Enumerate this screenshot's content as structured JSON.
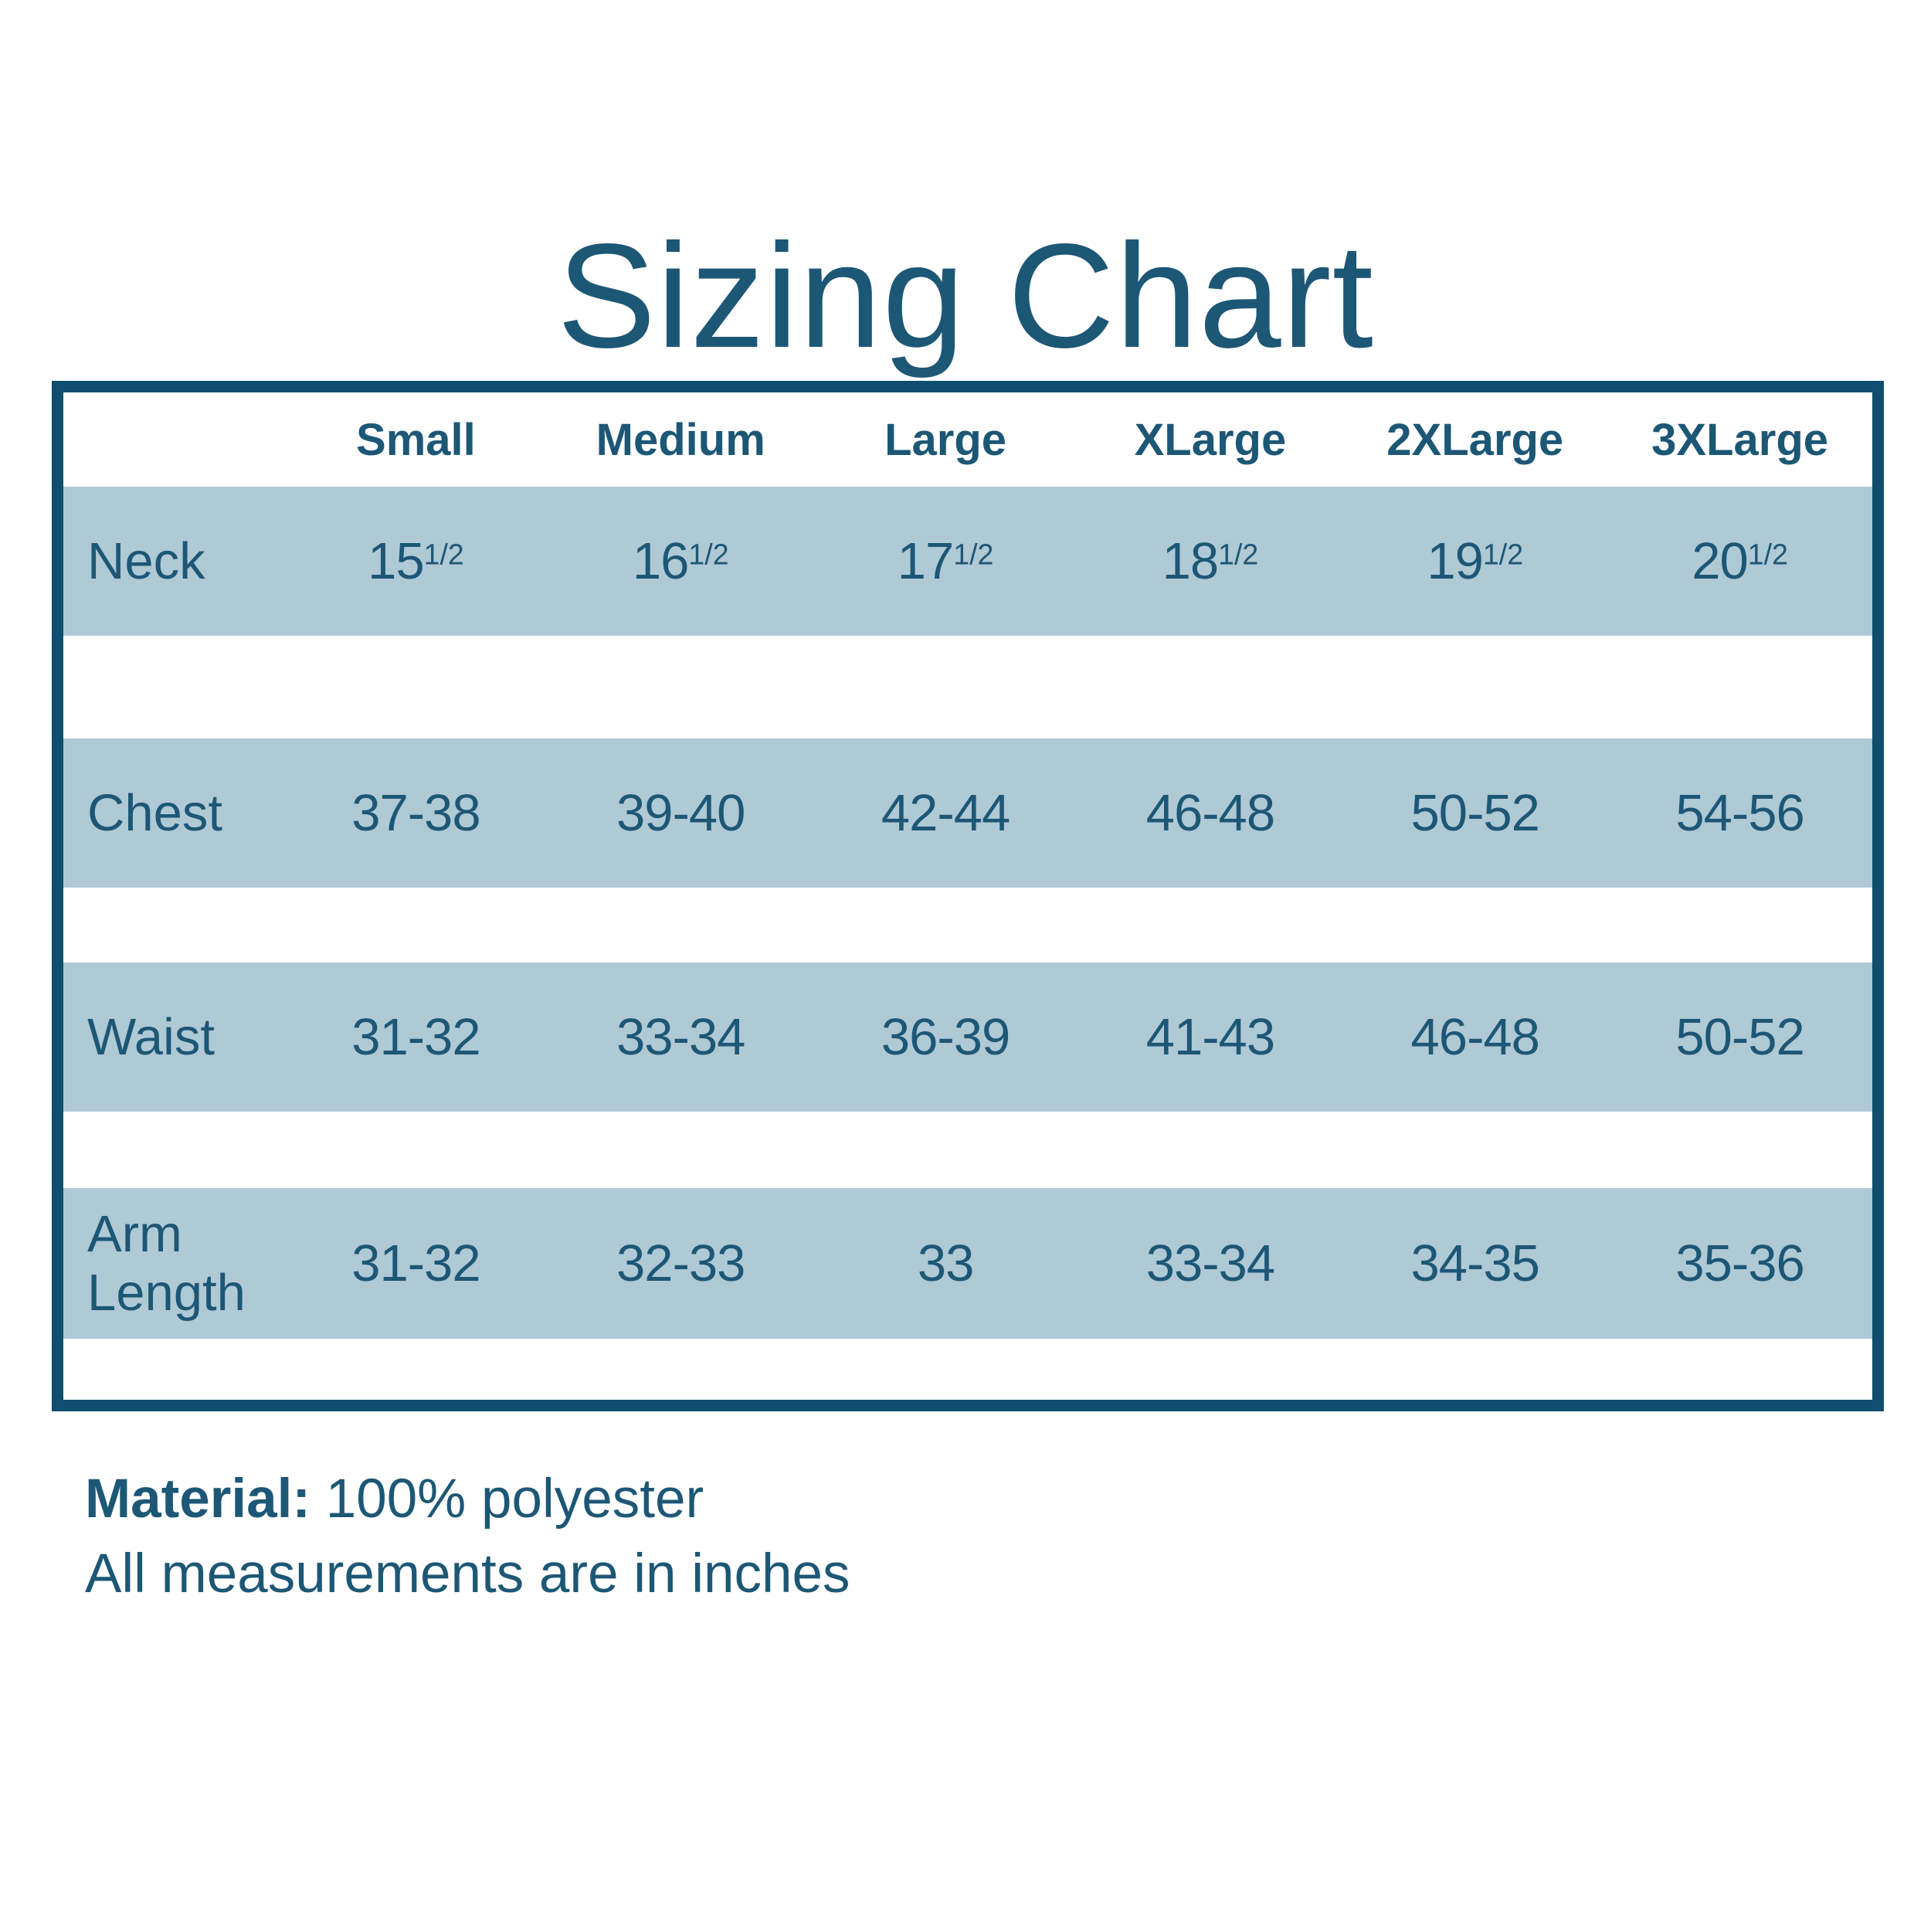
{
  "title": "Sizing Chart",
  "table": {
    "header": {
      "labels": [
        "Small",
        "Medium",
        "Large",
        "XLarge",
        "2XLarge",
        "3XLarge"
      ]
    },
    "rows": [
      {
        "label": "Neck",
        "unit_sup": "1/2",
        "values": [
          "15",
          "16",
          "17",
          "18",
          "19",
          "20"
        ]
      },
      {
        "label": "Chest",
        "values": [
          "37-38",
          "39-40",
          "42-44",
          "46-48",
          "50-52",
          "54-56"
        ]
      },
      {
        "label": "Waist",
        "values": [
          "31-32",
          "33-34",
          "36-39",
          "41-43",
          "46-48",
          "50-52"
        ]
      },
      {
        "label": "Arm Length",
        "values": [
          "31-32",
          "32-33",
          "33",
          "33-34",
          "34-35",
          "35-36"
        ]
      }
    ]
  },
  "footer": {
    "material_label": "Material:",
    "material_value": "100% polyester",
    "measurements_note": "All measurements are in inches"
  },
  "colors": {
    "text": "#1d5776",
    "border": "#0f4e6e",
    "band": "#afc9d5",
    "background": "#ffffff"
  }
}
